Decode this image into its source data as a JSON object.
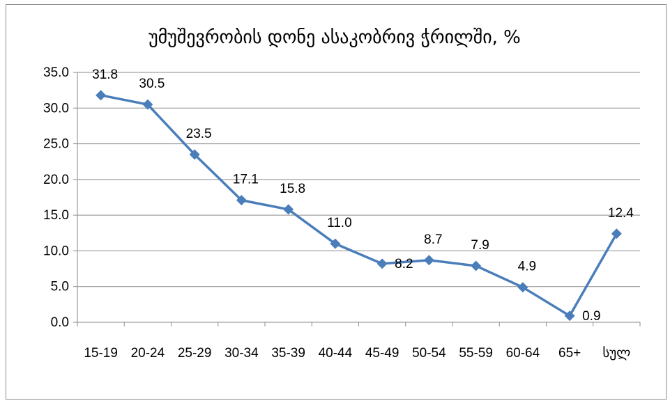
{
  "chart_data": {
    "type": "line",
    "title": "უმუშევრობის დონე ასაკობრივ ჭრილში, %",
    "categories": [
      "15-19",
      "20-24",
      "25-29",
      "30-34",
      "35-39",
      "40-44",
      "45-49",
      "50-54",
      "55-59",
      "60-64",
      "65+",
      "სულ"
    ],
    "series": [
      {
        "values": [
          31.8,
          30.5,
          23.5,
          17.1,
          15.8,
          11.0,
          8.2,
          8.7,
          7.9,
          4.9,
          0.9,
          12.4
        ],
        "labels": [
          "31.8",
          "30.5",
          "23.5",
          "17.1",
          "15.8",
          "11.0",
          "8.2",
          "8.7",
          "7.9",
          "4.9",
          "0.9",
          "12.4"
        ],
        "color": "#4a7ebb",
        "marker": "diamond"
      }
    ],
    "ylim": [
      0,
      35
    ],
    "yticks": [
      "0.0",
      "5.0",
      "10.0",
      "15.0",
      "20.0",
      "25.0",
      "30.0",
      "35.0"
    ],
    "xlabel": "",
    "ylabel": "",
    "grid": true,
    "legend": "none"
  }
}
